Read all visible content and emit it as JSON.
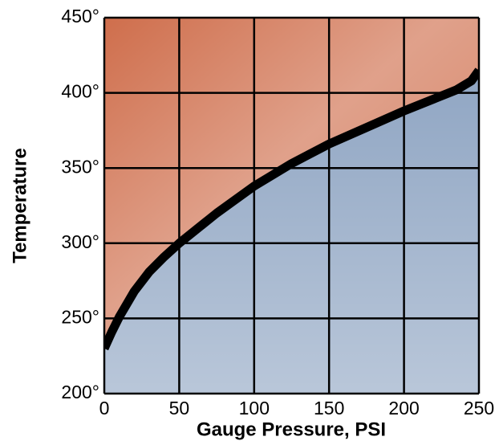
{
  "chart_data": {
    "type": "line",
    "x_label": "Gauge Pressure, PSI",
    "y_label": "Temperature",
    "x": [
      0,
      5,
      10,
      20,
      30,
      40,
      50,
      60,
      75,
      100,
      125,
      150,
      175,
      200,
      220,
      235,
      245,
      250
    ],
    "values": [
      230,
      241,
      251,
      268,
      281,
      291,
      300,
      308,
      320,
      338,
      353,
      366,
      377,
      388,
      396,
      402,
      408,
      415
    ],
    "color": "#000000",
    "above_color": "#cf6e4c",
    "below_color": "#8aa1c0",
    "xlim": [
      0,
      250
    ],
    "ylim": [
      200,
      450
    ],
    "xticks": [
      0,
      50,
      100,
      150,
      200,
      250
    ],
    "yticks": [
      {
        "value": 200,
        "label": "200°"
      },
      {
        "value": 250,
        "label": "250°"
      },
      {
        "value": 300,
        "label": "300°"
      },
      {
        "value": 350,
        "label": "350°"
      },
      {
        "value": 400,
        "label": "400°"
      },
      {
        "value": 450,
        "label": "450°"
      }
    ],
    "grid": true
  }
}
